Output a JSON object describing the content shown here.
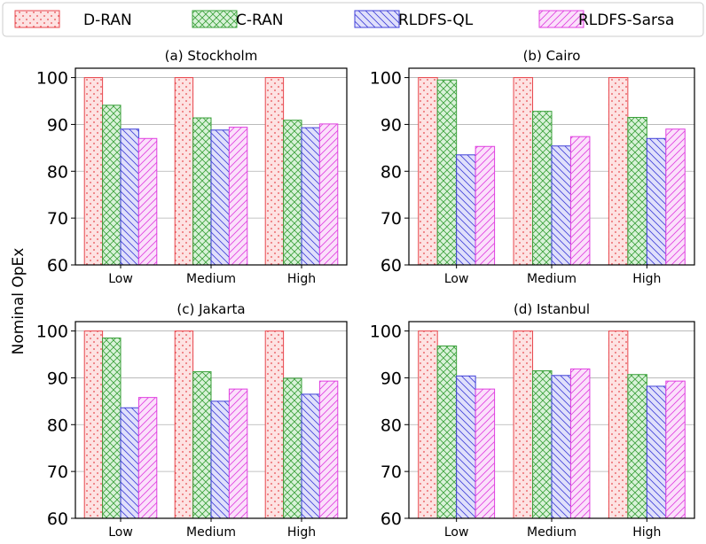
{
  "chart_data": {
    "type": "bar",
    "ylabel": "Nominal OpEx",
    "ylim": [
      60,
      102
    ],
    "yticks": [
      60,
      70,
      80,
      90,
      100
    ],
    "grid": true,
    "legend_position": "top",
    "categories": [
      "Low",
      "Medium",
      "High"
    ],
    "series_names": [
      "D-RAN",
      "C-RAN",
      "RLDFS-QL",
      "RLDFS-Sarsa"
    ],
    "series_styles": [
      {
        "color": "#e8474d",
        "fill": "#fde2e2",
        "hatch": "dots"
      },
      {
        "color": "#3aa03a",
        "fill": "#d9f2d9",
        "hatch": "crosshatch"
      },
      {
        "color": "#4040d8",
        "fill": "#e0e0fb",
        "hatch": "backslash"
      },
      {
        "color": "#e040e0",
        "fill": "#fbe0fb",
        "hatch": "slash"
      }
    ],
    "panels": [
      {
        "title": "(a) Stockholm",
        "values": [
          [
            100,
            94.1,
            89.0,
            87.0
          ],
          [
            100,
            91.4,
            88.8,
            89.4
          ],
          [
            100,
            90.9,
            89.3,
            90.1
          ]
        ]
      },
      {
        "title": "(b) Cairo",
        "values": [
          [
            100,
            99.5,
            83.5,
            85.3
          ],
          [
            100,
            92.8,
            85.4,
            87.4
          ],
          [
            100,
            91.5,
            87.0,
            89.0
          ]
        ]
      },
      {
        "title": "(c) Jakarta",
        "values": [
          [
            100,
            98.5,
            83.6,
            85.8
          ],
          [
            100,
            91.3,
            85.0,
            87.6
          ],
          [
            100,
            89.9,
            86.5,
            89.3
          ]
        ]
      },
      {
        "title": "(d) Istanbul",
        "values": [
          [
            100,
            96.8,
            90.4,
            87.6
          ],
          [
            100,
            91.5,
            90.5,
            91.9
          ],
          [
            100,
            90.7,
            88.2,
            89.3
          ]
        ]
      }
    ]
  }
}
